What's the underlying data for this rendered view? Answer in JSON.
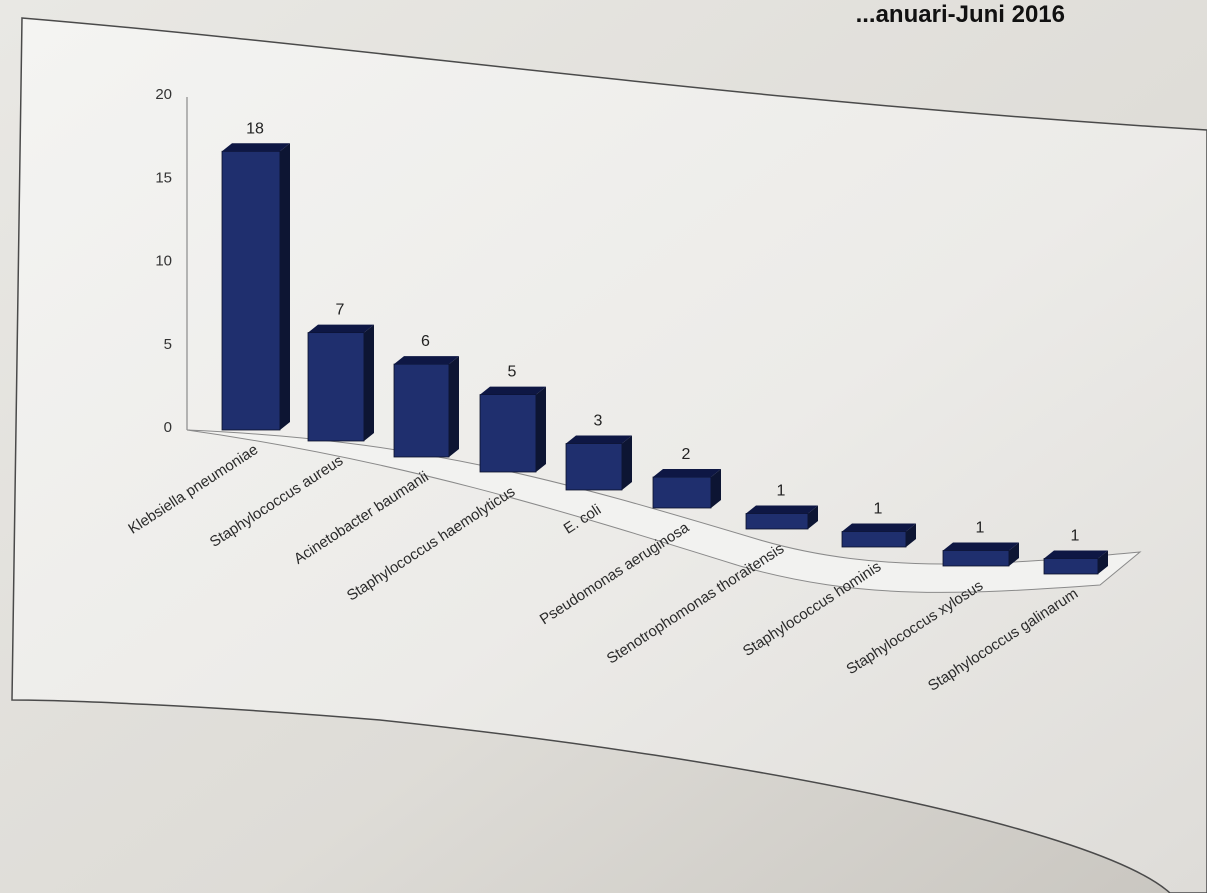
{
  "chart_data": {
    "type": "bar",
    "title": "...anuari-Juni 2016",
    "xlabel": "",
    "ylabel": "",
    "ylim": [
      0,
      20
    ],
    "yticks": [
      0,
      5,
      10,
      15,
      20
    ],
    "grid": false,
    "legend": "none",
    "bar_color": "#1f2f6e",
    "categories": [
      "Klebsiella pneumoniae",
      "Staphylococcus aureus",
      "Acinetobacter baumanii",
      "Staphylococcus haemolyticus",
      "E. coli",
      "Pseudomonas aeruginosa",
      "Stenotrophomonas thoraitensis",
      "Staphylococcus hominis",
      "Staphylococcus xylosus",
      "Staphylococcus galinarum"
    ],
    "values": [
      18,
      7,
      6,
      5,
      3,
      2,
      1,
      1,
      1,
      1
    ]
  }
}
